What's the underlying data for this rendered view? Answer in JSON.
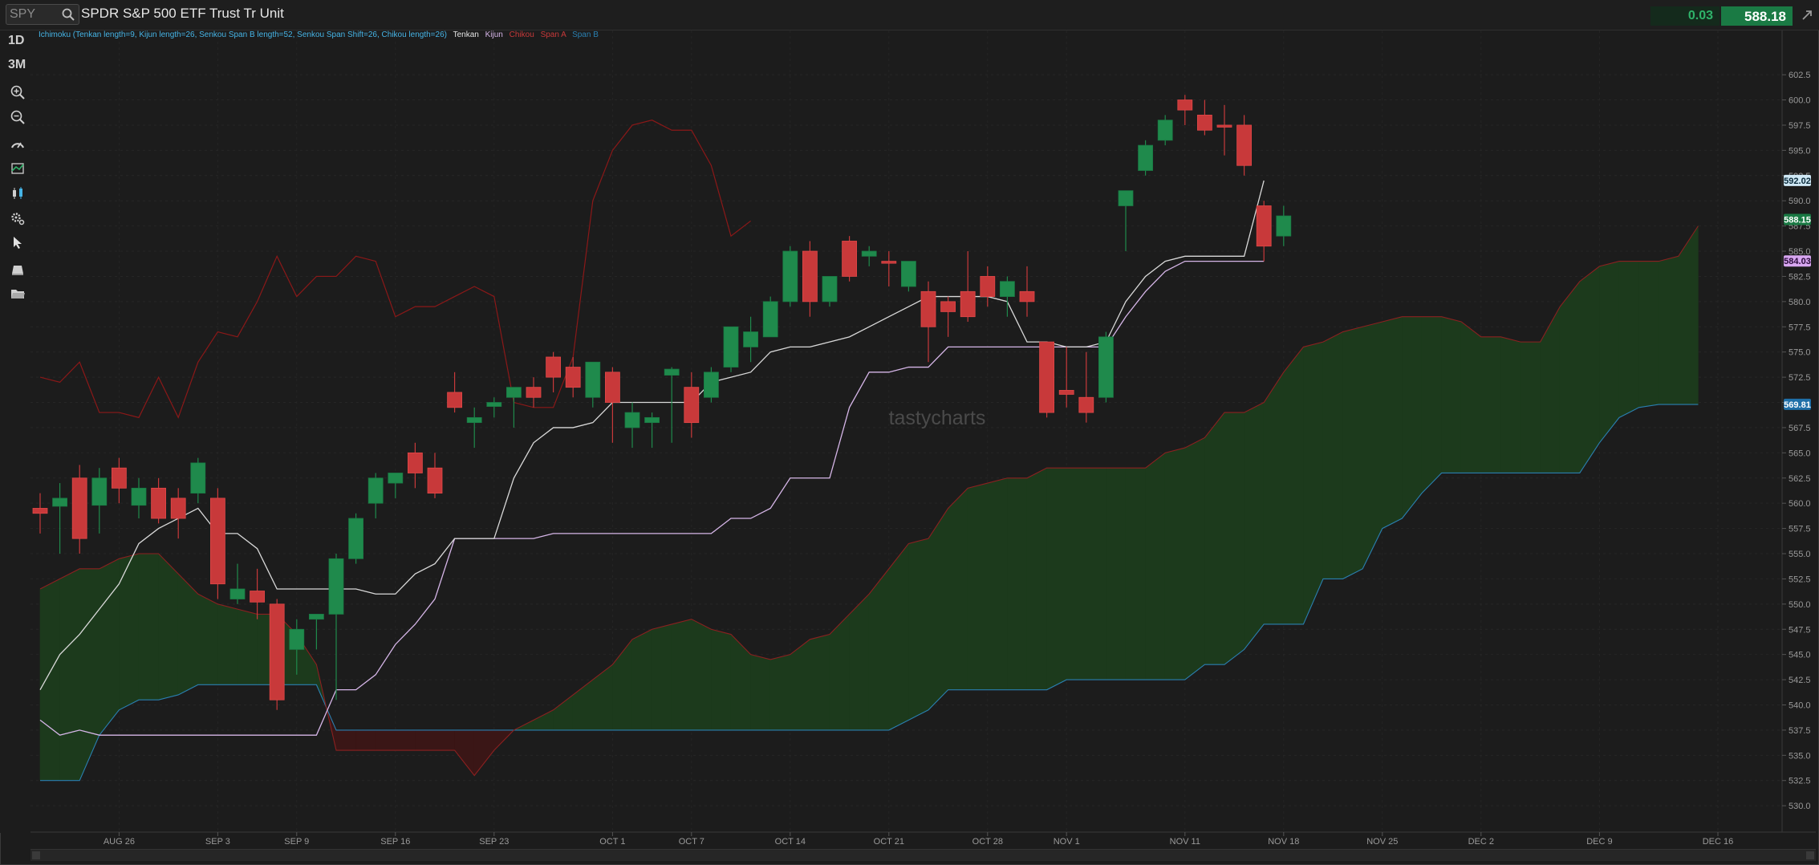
{
  "header": {
    "symbol_value": "SPY",
    "instrument_name": "SPDR S&P 500 ETF Trust Tr Unit",
    "change": "0.03",
    "last_price": "588.18"
  },
  "toolbar": {
    "timeframe_1": "1D",
    "timeframe_2": "3M",
    "icons": [
      "zoom-in-icon",
      "zoom-out-icon",
      "speedometer-icon",
      "studies-icon",
      "chart-style-icon",
      "settings-icon",
      "cursor-icon",
      "drawings-icon",
      "folder-icon"
    ]
  },
  "indicator_label": {
    "study": "Ichimoku (Tenkan length=9, Kijun length=26, Senkou Span B length=52, Senkou Span Shift=26, Chikou length=26)",
    "tenkan": "Tenkan",
    "kijun": "Kijun",
    "chikou": "Chikou",
    "span_a": "Span A",
    "span_b": "Span B"
  },
  "watermark": "tastycharts",
  "colors": {
    "up": "#1f8a4c",
    "down": "#c8393a",
    "tenkan": "#d9d9d9",
    "kijun": "#d6b6e8",
    "chikou": "#8b1818",
    "span_a": "#8b2020",
    "span_b": "#2a7fb0",
    "cloud_bull": "#1c3a1c",
    "cloud_bear": "#3a1616",
    "label_blue": "#46b4e6"
  },
  "price_tags": [
    {
      "name": "tenkan-tag",
      "value": "592.02",
      "bg": "#cfe8f5",
      "fg": "#0a2a3a"
    },
    {
      "name": "last-price-tag",
      "value": "588.15",
      "bg": "#1a7a44",
      "fg": "#ffffff"
    },
    {
      "name": "kijun-tag",
      "value": "584.03",
      "bg": "#d7a6f0",
      "fg": "#2a0a3a"
    },
    {
      "name": "span-b-tag",
      "value": "569.81",
      "bg": "#1f6fa8",
      "fg": "#ffffff"
    }
  ],
  "chart_data": {
    "type": "candlestick",
    "title": "",
    "xlabel": "",
    "ylabel": "",
    "ylim": [
      528.5,
      604.5
    ],
    "y_ticks": [
      602.5,
      600.0,
      597.5,
      595.0,
      592.5,
      590.0,
      587.5,
      585.0,
      582.5,
      580.0,
      577.5,
      575.0,
      572.5,
      570.0,
      567.5,
      565.0,
      562.5,
      560.0,
      557.5,
      555.0,
      552.5,
      550.0,
      547.5,
      545.0,
      542.5,
      540.0,
      537.5,
      535.0,
      532.5,
      530.0
    ],
    "x_ticks": [
      {
        "label": "AUG 26",
        "i": 4
      },
      {
        "label": "SEP 3",
        "i": 9
      },
      {
        "label": "SEP 9",
        "i": 13
      },
      {
        "label": "SEP 16",
        "i": 18
      },
      {
        "label": "SEP 23",
        "i": 23
      },
      {
        "label": "OCT 1",
        "i": 29
      },
      {
        "label": "OCT 7",
        "i": 33
      },
      {
        "label": "OCT 14",
        "i": 38
      },
      {
        "label": "OCT 21",
        "i": 43
      },
      {
        "label": "OCT 28",
        "i": 48
      },
      {
        "label": "NOV 1",
        "i": 52
      },
      {
        "label": "NOV 11",
        "i": 58
      },
      {
        "label": "NOV 18",
        "i": 63
      },
      {
        "label": "NOV 25",
        "i": 68
      },
      {
        "label": "DEC 2",
        "i": 73
      },
      {
        "label": "DEC 9",
        "i": 79
      },
      {
        "label": "DEC 16",
        "i": 85
      }
    ],
    "candles": [
      {
        "o": 559.5,
        "h": 561.0,
        "l": 557.0,
        "c": 559.0
      },
      {
        "o": 559.7,
        "h": 562.0,
        "l": 555.0,
        "c": 560.5
      },
      {
        "o": 562.5,
        "h": 563.8,
        "l": 555.0,
        "c": 556.5
      },
      {
        "o": 559.8,
        "h": 563.5,
        "l": 557.0,
        "c": 562.5
      },
      {
        "o": 563.5,
        "h": 564.5,
        "l": 560.0,
        "c": 561.5
      },
      {
        "o": 559.8,
        "h": 562.5,
        "l": 558.5,
        "c": 561.5
      },
      {
        "o": 561.5,
        "h": 562.5,
        "l": 558.0,
        "c": 558.5
      },
      {
        "o": 560.5,
        "h": 561.5,
        "l": 556.5,
        "c": 558.5
      },
      {
        "o": 561.0,
        "h": 564.5,
        "l": 560.0,
        "c": 564.0
      },
      {
        "o": 560.5,
        "h": 561.5,
        "l": 550.5,
        "c": 552.0
      },
      {
        "o": 550.5,
        "h": 554.0,
        "l": 550.0,
        "c": 551.5
      },
      {
        "o": 551.3,
        "h": 553.5,
        "l": 548.5,
        "c": 550.2
      },
      {
        "o": 550.0,
        "h": 550.5,
        "l": 539.5,
        "c": 540.5
      },
      {
        "o": 545.5,
        "h": 548.5,
        "l": 543.0,
        "c": 547.5
      },
      {
        "o": 548.5,
        "h": 549.0,
        "l": 545.5,
        "c": 549.0
      },
      {
        "o": 549.0,
        "h": 555.0,
        "l": 540.5,
        "c": 554.5
      },
      {
        "o": 554.5,
        "h": 559.0,
        "l": 554.0,
        "c": 558.5
      },
      {
        "o": 560.0,
        "h": 563.0,
        "l": 558.5,
        "c": 562.5
      },
      {
        "o": 562.0,
        "h": 563.0,
        "l": 560.5,
        "c": 563.0
      },
      {
        "o": 565.0,
        "h": 566.0,
        "l": 561.5,
        "c": 563.0
      },
      {
        "o": 563.5,
        "h": 565.0,
        "l": 560.5,
        "c": 561.0
      },
      {
        "o": 571.0,
        "h": 573.0,
        "l": 569.0,
        "c": 569.5
      },
      {
        "o": 568.0,
        "h": 569.5,
        "l": 565.5,
        "c": 568.5
      },
      {
        "o": 569.6,
        "h": 570.5,
        "l": 568.5,
        "c": 570.0
      },
      {
        "o": 570.5,
        "h": 571.5,
        "l": 567.5,
        "c": 571.5
      },
      {
        "o": 571.5,
        "h": 572.5,
        "l": 569.5,
        "c": 570.5
      },
      {
        "o": 574.5,
        "h": 575.0,
        "l": 571.0,
        "c": 572.5
      },
      {
        "o": 573.5,
        "h": 574.5,
        "l": 570.5,
        "c": 571.5
      },
      {
        "o": 570.5,
        "h": 574.0,
        "l": 569.5,
        "c": 574.0
      },
      {
        "o": 573.0,
        "h": 573.5,
        "l": 566.0,
        "c": 570.0
      },
      {
        "o": 567.5,
        "h": 570.0,
        "l": 565.5,
        "c": 569.0
      },
      {
        "o": 568.0,
        "h": 569.0,
        "l": 565.5,
        "c": 568.5
      },
      {
        "o": 572.7,
        "h": 573.5,
        "l": 566.0,
        "c": 573.3
      },
      {
        "o": 571.5,
        "h": 573.0,
        "l": 566.5,
        "c": 568.0
      },
      {
        "o": 570.5,
        "h": 573.5,
        "l": 570.0,
        "c": 573.0
      },
      {
        "o": 573.5,
        "h": 577.5,
        "l": 573.0,
        "c": 577.5
      },
      {
        "o": 575.5,
        "h": 578.5,
        "l": 574.0,
        "c": 577.0
      },
      {
        "o": 576.5,
        "h": 580.5,
        "l": 576.5,
        "c": 580.0
      },
      {
        "o": 580.0,
        "h": 585.5,
        "l": 579.5,
        "c": 585.0
      },
      {
        "o": 585.0,
        "h": 586.0,
        "l": 578.5,
        "c": 580.0
      },
      {
        "o": 580.0,
        "h": 582.5,
        "l": 579.5,
        "c": 582.5
      },
      {
        "o": 586.0,
        "h": 586.5,
        "l": 582.0,
        "c": 582.5
      },
      {
        "o": 584.5,
        "h": 585.5,
        "l": 583.5,
        "c": 585.0
      },
      {
        "o": 584.0,
        "h": 585.0,
        "l": 581.5,
        "c": 583.8
      },
      {
        "o": 581.5,
        "h": 584.0,
        "l": 581.0,
        "c": 584.0
      },
      {
        "o": 581.0,
        "h": 582.0,
        "l": 574.0,
        "c": 577.5
      },
      {
        "o": 580.0,
        "h": 580.5,
        "l": 576.5,
        "c": 579.0
      },
      {
        "o": 581.0,
        "h": 585.0,
        "l": 578.0,
        "c": 578.5
      },
      {
        "o": 582.5,
        "h": 583.5,
        "l": 579.5,
        "c": 580.5
      },
      {
        "o": 580.5,
        "h": 582.5,
        "l": 578.5,
        "c": 582.0
      },
      {
        "o": 581.0,
        "h": 583.5,
        "l": 578.5,
        "c": 580.0
      },
      {
        "o": 576.0,
        "h": 576.0,
        "l": 568.5,
        "c": 569.0
      },
      {
        "o": 571.2,
        "h": 575.5,
        "l": 569.5,
        "c": 570.8
      },
      {
        "o": 570.5,
        "h": 575.0,
        "l": 568.0,
        "c": 569.0
      },
      {
        "o": 570.5,
        "h": 577.0,
        "l": 570.0,
        "c": 576.5
      },
      {
        "o": 589.5,
        "h": 590.5,
        "l": 585.0,
        "c": 591.0
      },
      {
        "o": 593.0,
        "h": 596.0,
        "l": 592.5,
        "c": 595.5
      },
      {
        "o": 596.0,
        "h": 598.5,
        "l": 595.5,
        "c": 598.0
      },
      {
        "o": 600.0,
        "h": 600.5,
        "l": 597.5,
        "c": 599.0
      },
      {
        "o": 598.5,
        "h": 600.0,
        "l": 596.5,
        "c": 597.0
      },
      {
        "o": 597.5,
        "h": 599.5,
        "l": 594.5,
        "c": 597.3
      },
      {
        "o": 597.5,
        "h": 598.5,
        "l": 592.5,
        "c": 593.5
      },
      {
        "o": 589.5,
        "h": 590.0,
        "l": 584.0,
        "c": 585.5
      },
      {
        "o": 586.5,
        "h": 589.5,
        "l": 585.5,
        "c": 588.5
      }
    ],
    "tenkan": [
      541.5,
      545.0,
      547.0,
      549.5,
      552.0,
      556.0,
      557.5,
      558.5,
      559.5,
      557.0,
      557.0,
      555.5,
      551.5,
      551.5,
      551.5,
      551.5,
      551.5,
      551.0,
      551.0,
      553.0,
      554.0,
      556.5,
      556.5,
      556.5,
      562.5,
      566.0,
      567.5,
      567.5,
      568.0,
      570.0,
      570.0,
      570.0,
      570.0,
      570.0,
      572.0,
      572.5,
      573.0,
      575.0,
      575.5,
      575.5,
      576.0,
      576.5,
      577.5,
      578.5,
      579.5,
      580.5,
      580.5,
      580.5,
      580.5,
      580.0,
      576.0,
      576.0,
      575.5,
      575.5,
      576.0,
      580.0,
      582.5,
      584.0,
      584.5,
      584.5,
      584.5,
      584.5,
      592.0
    ],
    "kijun": [
      538.5,
      537.0,
      537.5,
      537.0,
      537.0,
      537.0,
      537.0,
      537.0,
      537.0,
      537.0,
      537.0,
      537.0,
      537.0,
      537.0,
      537.0,
      541.5,
      541.5,
      543.0,
      546.0,
      548.0,
      550.5,
      556.5,
      556.5,
      556.5,
      556.5,
      556.5,
      557.0,
      557.0,
      557.0,
      557.0,
      557.0,
      557.0,
      557.0,
      557.0,
      557.0,
      558.5,
      558.5,
      559.5,
      562.5,
      562.5,
      562.5,
      569.5,
      573.0,
      573.0,
      573.5,
      573.5,
      575.5,
      575.5,
      575.5,
      575.5,
      575.5,
      575.5,
      575.5,
      575.5,
      575.5,
      578.5,
      581.0,
      583.0,
      584.0,
      584.0,
      584.0,
      584.0,
      584.0
    ],
    "chikou": [
      572.5,
      572.0,
      574.0,
      569.0,
      569.0,
      568.5,
      572.5,
      568.5,
      574.0,
      577.0,
      576.5,
      580.0,
      584.5,
      580.5,
      582.5,
      582.5,
      584.5,
      584.0,
      578.5,
      579.5,
      579.5,
      580.5,
      581.5,
      580.5,
      570.0,
      569.5,
      569.5,
      574.5,
      590.0,
      595.0,
      597.5,
      598.0,
      597.0,
      597.0,
      593.5,
      586.5,
      588.0
    ],
    "span_a": [
      551.5,
      552.5,
      553.5,
      553.5,
      554.5,
      555.0,
      555.0,
      553.0,
      551.0,
      550.0,
      549.5,
      549.0,
      549.0,
      547.0,
      544.0,
      535.5,
      535.5,
      535.5,
      535.5,
      535.5,
      535.5,
      535.5,
      533.0,
      535.5,
      537.5,
      538.5,
      539.5,
      541.0,
      542.5,
      544.0,
      546.5,
      547.5,
      548.0,
      548.5,
      547.5,
      547.0,
      545.0,
      544.5,
      545.0,
      546.5,
      547.0,
      549.0,
      551.0,
      553.5,
      556.0,
      556.5,
      559.5,
      561.5,
      562.0,
      562.5,
      562.5,
      563.5,
      563.5,
      563.5,
      563.5,
      563.5,
      563.5,
      565.0,
      565.5,
      566.5,
      569.0,
      569.0,
      570.0,
      573.0,
      575.5,
      576.0,
      577.0,
      577.5,
      578.0,
      578.5,
      578.5,
      578.5,
      578.0,
      576.5,
      576.5,
      576.0,
      576.0,
      579.5,
      582.0,
      583.5,
      584.0,
      584.0,
      584.0,
      584.5,
      587.5
    ],
    "span_b": [
      532.5,
      532.5,
      532.5,
      537.0,
      539.5,
      540.5,
      540.5,
      541.0,
      542.0,
      542.0,
      542.0,
      542.0,
      542.0,
      542.0,
      542.0,
      537.5,
      537.5,
      537.5,
      537.5,
      537.5,
      537.5,
      537.5,
      537.5,
      537.5,
      537.5,
      537.5,
      537.5,
      537.5,
      537.5,
      537.5,
      537.5,
      537.5,
      537.5,
      537.5,
      537.5,
      537.5,
      537.5,
      537.5,
      537.5,
      537.5,
      537.5,
      537.5,
      537.5,
      537.5,
      538.5,
      539.5,
      541.5,
      541.5,
      541.5,
      541.5,
      541.5,
      541.5,
      542.5,
      542.5,
      542.5,
      542.5,
      542.5,
      542.5,
      542.5,
      544.0,
      544.0,
      545.5,
      548.0,
      548.0,
      548.0,
      552.5,
      552.5,
      553.5,
      557.5,
      558.5,
      561.0,
      563.0,
      563.0,
      563.0,
      563.0,
      563.0,
      563.0,
      563.0,
      563.0,
      566.0,
      568.5,
      569.5,
      569.8,
      569.8,
      569.8
    ]
  }
}
